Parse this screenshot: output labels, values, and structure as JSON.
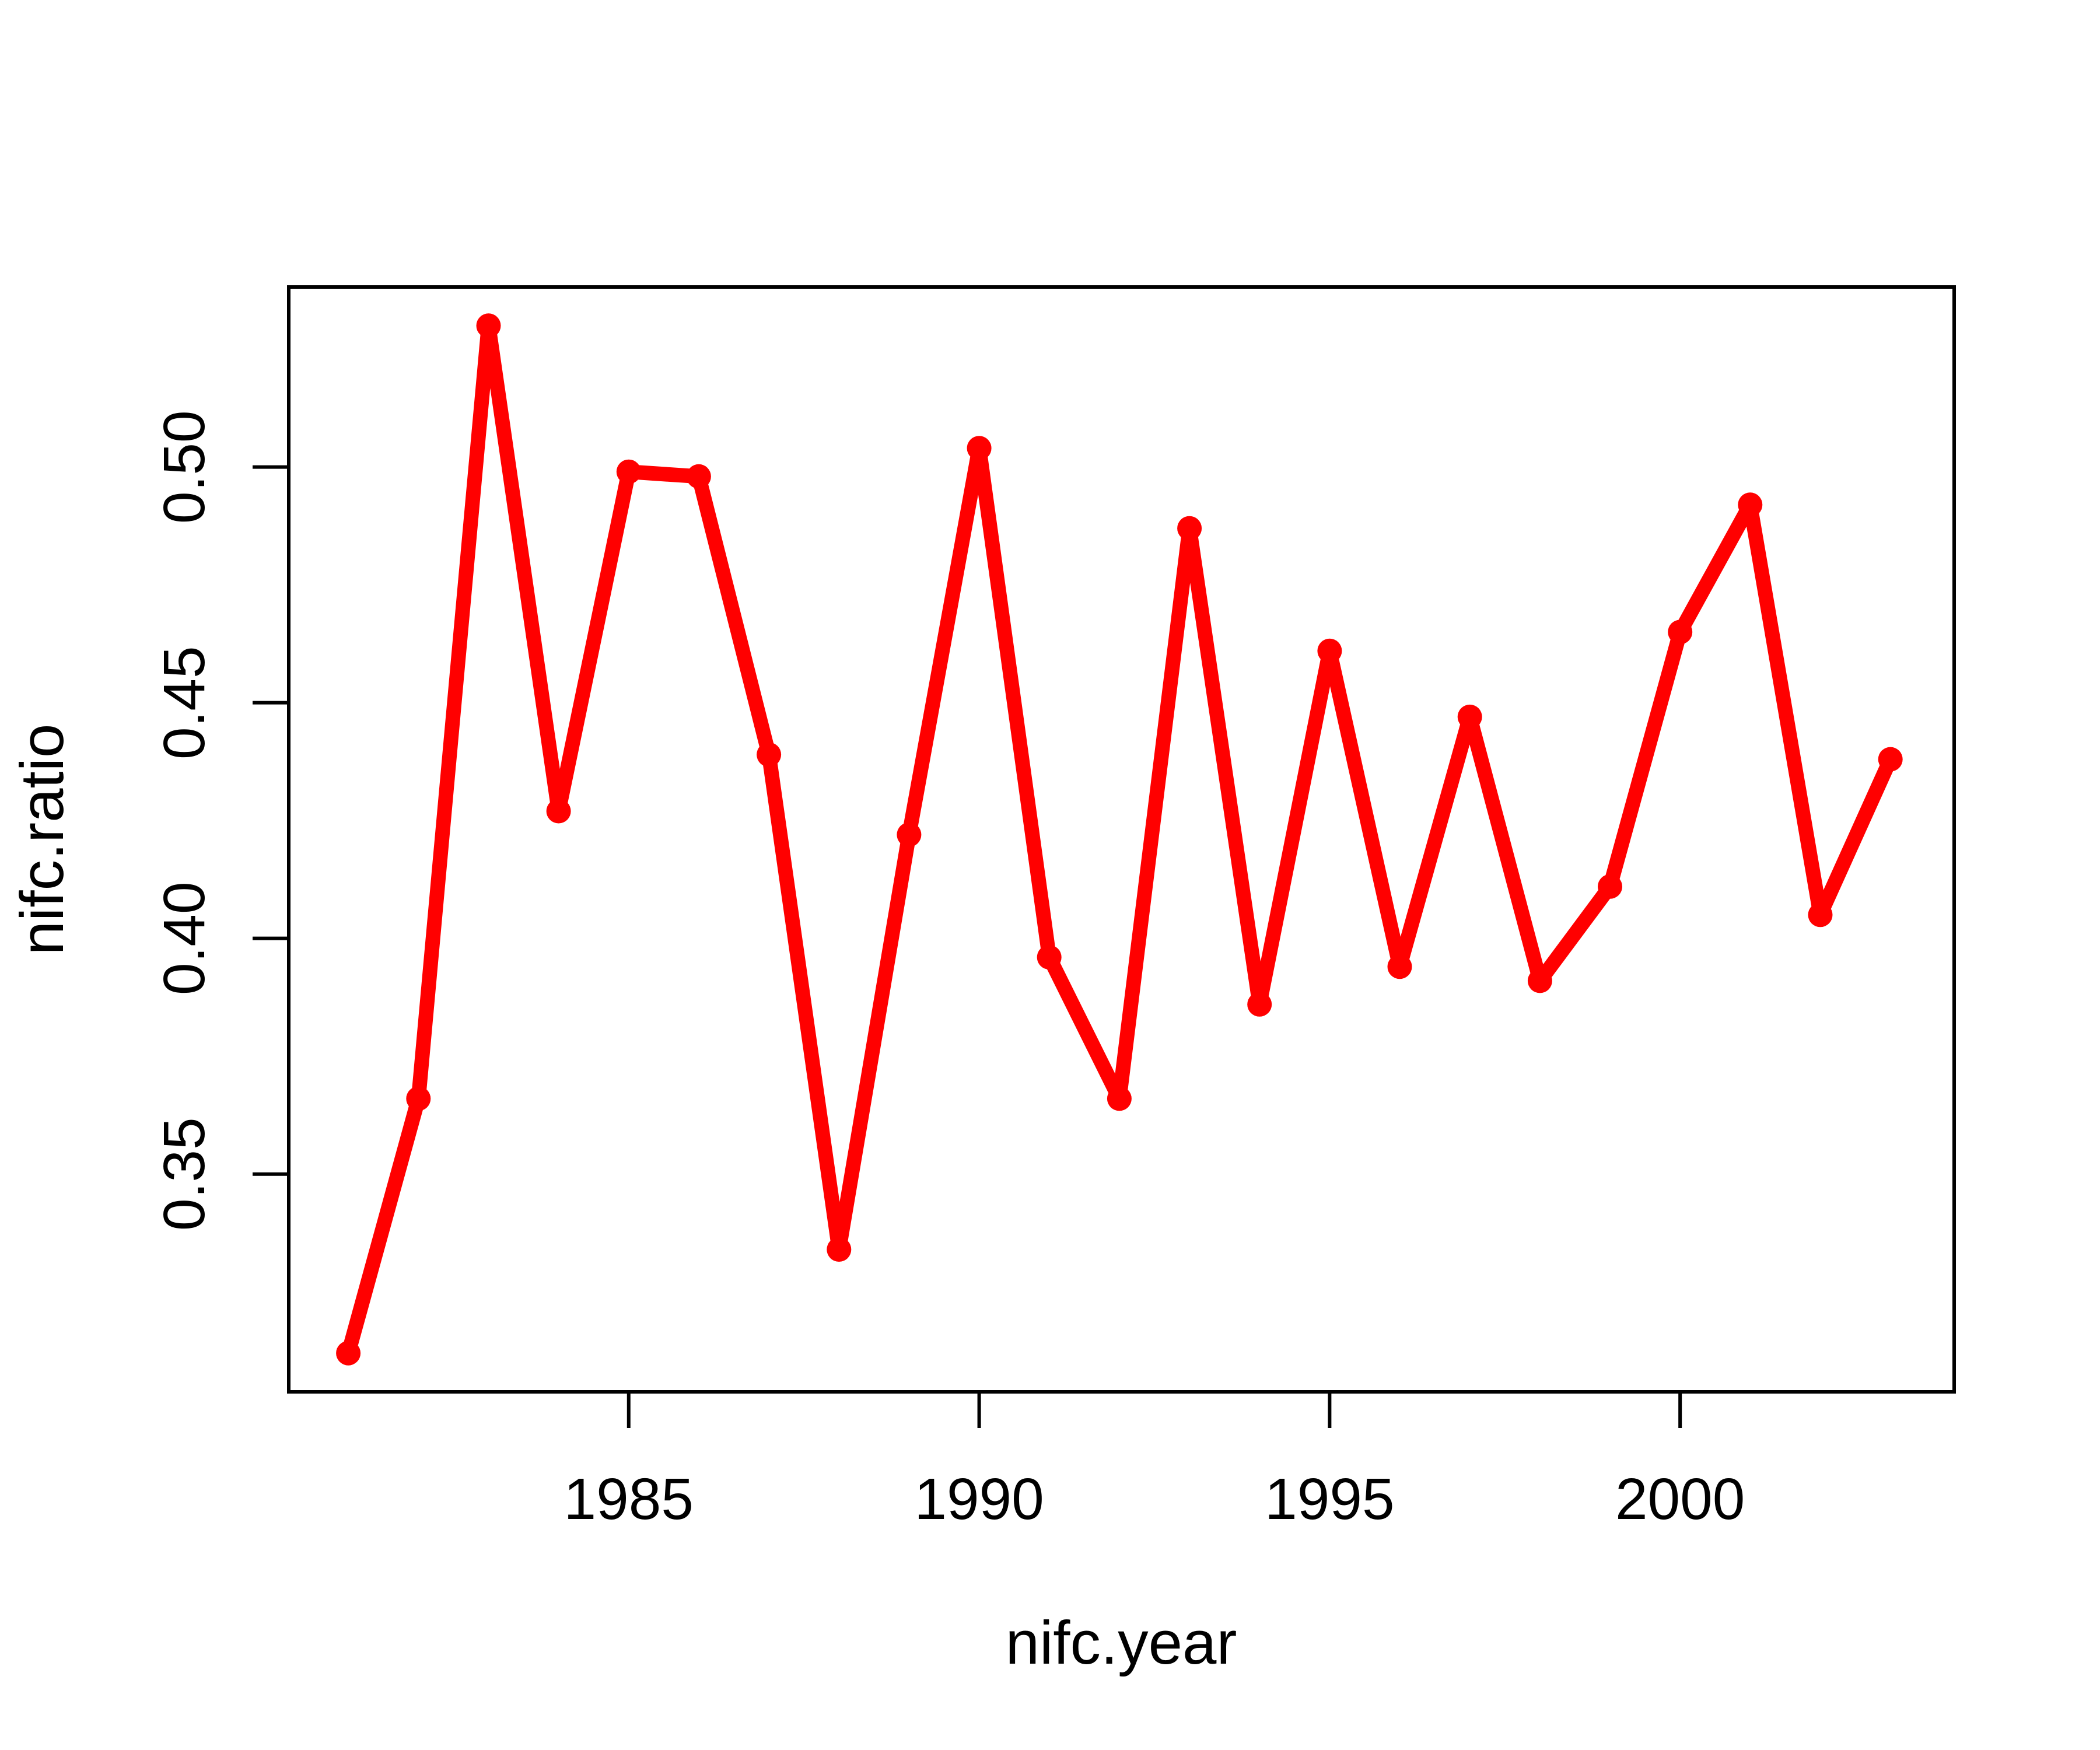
{
  "chart_data": {
    "type": "line",
    "title": "",
    "xlabel": "nifc.year",
    "ylabel": "nifc.ratio",
    "x": [
      1981,
      1982,
      1983,
      1984,
      1985,
      1986,
      1987,
      1988,
      1989,
      1990,
      1991,
      1992,
      1993,
      1994,
      1995,
      1996,
      1997,
      1998,
      1999,
      2000,
      2001,
      2002,
      2003
    ],
    "values": [
      0.312,
      0.366,
      0.53,
      0.427,
      0.499,
      0.498,
      0.439,
      0.334,
      0.422,
      0.504,
      0.396,
      0.366,
      0.487,
      0.386,
      0.461,
      0.394,
      0.447,
      0.391,
      0.411,
      0.465,
      0.492,
      0.405,
      0.438
    ],
    "x_ticks": {
      "values": [
        1985,
        1990,
        1995,
        2000
      ],
      "labels": [
        "1985",
        "1990",
        "1995",
        "2000"
      ]
    },
    "y_ticks": {
      "values": [
        0.35,
        0.4,
        0.45,
        0.5
      ],
      "labels": [
        "0.35",
        "0.40",
        "0.45",
        "0.50"
      ]
    },
    "xlim": [
      1980.15,
      2003.91
    ],
    "ylim": [
      0.3038,
      0.5382
    ],
    "grid": false,
    "legend": null,
    "line_color": "#FF0000",
    "marker": "filled-circle",
    "marker_color": "#FF0000",
    "axis_color": "#000000",
    "background_color": "#FFFFFF"
  }
}
